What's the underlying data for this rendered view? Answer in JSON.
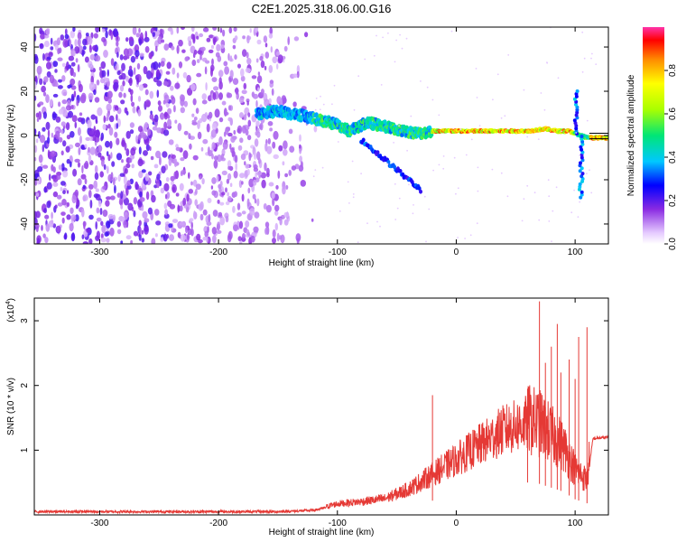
{
  "title": "C2E1.2025.318.06.00.G16",
  "chart_data": [
    {
      "type": "heatmap",
      "xlabel": "Height of straight line (km)",
      "ylabel": "Frequency (Hz)",
      "xlim": [
        -355,
        128
      ],
      "ylim": [
        -49,
        49
      ],
      "xticks": [
        -300,
        -200,
        -100,
        0,
        100
      ],
      "yticks": [
        -40,
        -20,
        0,
        20,
        40
      ],
      "colorbar": {
        "label": "Normalized spectral amplitude",
        "range": [
          0,
          1
        ],
        "ticks": [
          0.0,
          0.2,
          0.4,
          0.6,
          0.8
        ]
      },
      "trace": {
        "x": [
          -165,
          -150,
          -130,
          -115,
          -100,
          -90,
          -75,
          -60,
          -45,
          -30,
          -20,
          -10,
          0,
          20,
          40,
          60,
          75,
          85,
          95,
          100,
          105,
          110,
          115,
          128
        ],
        "y": [
          10,
          11,
          9,
          7,
          5,
          2,
          6,
          4,
          2,
          1,
          2,
          2,
          2,
          2,
          2,
          2,
          3,
          2,
          2,
          1,
          0,
          -1,
          -1,
          -1
        ]
      }
    },
    {
      "type": "line",
      "xlabel": "Height of straight line (km)",
      "ylabel": "SNR (10 * v/v)",
      "multiplier": "(x10",
      "multiplier_exp": "4",
      "xlim": [
        -355,
        128
      ],
      "ylim": [
        0,
        3.35
      ],
      "xticks": [
        -300,
        -200,
        -100,
        0,
        100
      ],
      "yticks": [
        1,
        2,
        3
      ],
      "color": "#e53935",
      "envelope": {
        "x": [
          -355,
          -150,
          -120,
          -100,
          -80,
          -60,
          -40,
          -20,
          0,
          20,
          40,
          60,
          70,
          80,
          90,
          100,
          110,
          115,
          128
        ],
        "y": [
          0.05,
          0.05,
          0.07,
          0.15,
          0.18,
          0.22,
          0.35,
          0.55,
          0.75,
          0.95,
          1.15,
          1.25,
          1.2,
          1.05,
          0.9,
          0.6,
          0.45,
          1.18,
          1.2
        ]
      },
      "spikes": [
        {
          "x": -20,
          "y": 1.85
        },
        {
          "x": 60,
          "y": 1.95
        },
        {
          "x": 70,
          "y": 3.3
        },
        {
          "x": 75,
          "y": 2.35
        },
        {
          "x": 80,
          "y": 2.6
        },
        {
          "x": 85,
          "y": 2.95
        },
        {
          "x": 88,
          "y": 2.2
        },
        {
          "x": 95,
          "y": 2.4
        },
        {
          "x": 100,
          "y": 2.1
        },
        {
          "x": 103,
          "y": 2.75
        },
        {
          "x": 110,
          "y": 2.9
        }
      ]
    }
  ]
}
